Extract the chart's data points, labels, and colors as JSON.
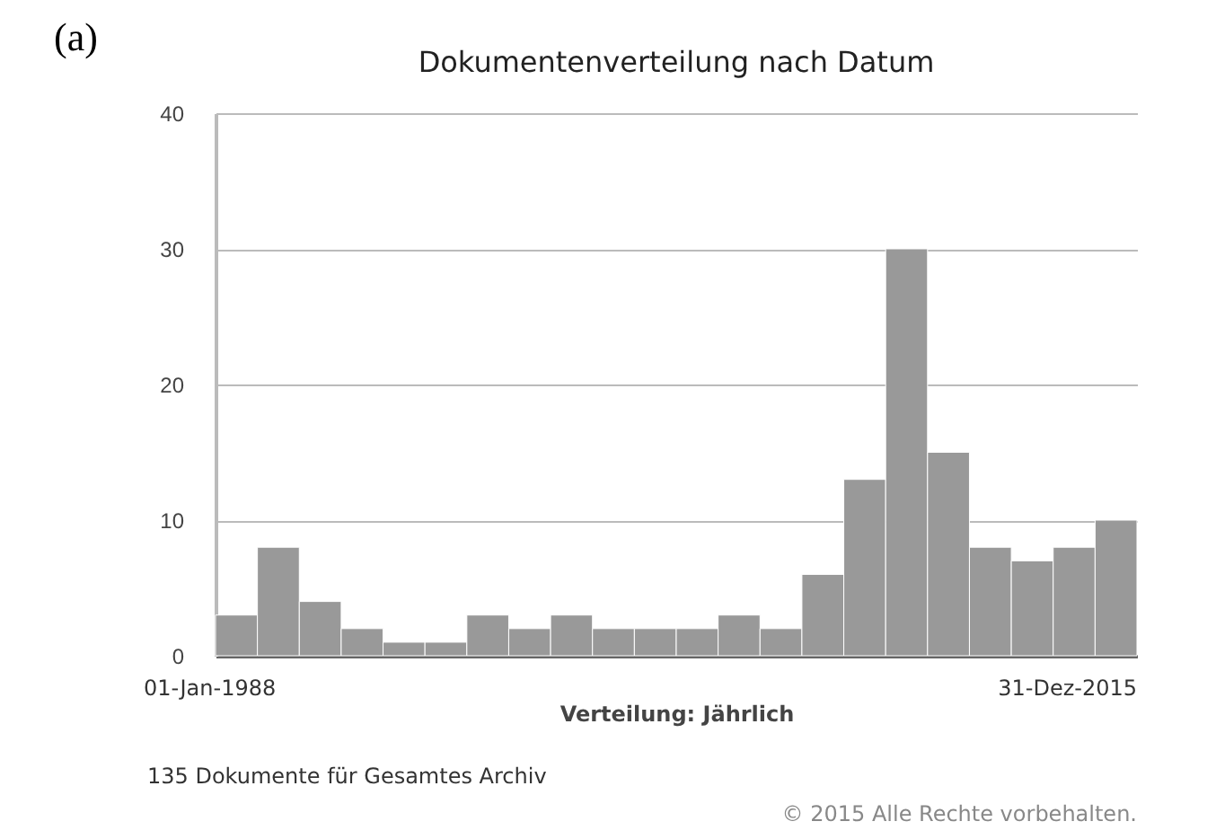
{
  "chart_data": {
    "type": "bar",
    "title": "Dokumentenverteilung nach Datum",
    "xlabel": "Verteilung: Jährlich",
    "categories": [
      null,
      null,
      null,
      null,
      null,
      null,
      null,
      null,
      null,
      null,
      null,
      null,
      null,
      null,
      null,
      null,
      null,
      null,
      null,
      null,
      null,
      null
    ],
    "values": [
      3,
      8,
      4,
      2,
      1,
      1,
      3,
      2,
      3,
      2,
      2,
      2,
      3,
      2,
      6,
      13,
      30,
      15,
      8,
      7,
      8,
      10
    ],
    "color": "#999999",
    "ylim": [
      0,
      40
    ],
    "yticks": [
      0,
      10,
      20,
      30,
      40
    ],
    "grid": "y",
    "annotations": [
      "(a)",
      "01-Jan-1988",
      "31-Dez-2015",
      "135 Dokumente für Gesamtes Archiv",
      "© 2015 Alle Rechte vorbehalten."
    ]
  }
}
